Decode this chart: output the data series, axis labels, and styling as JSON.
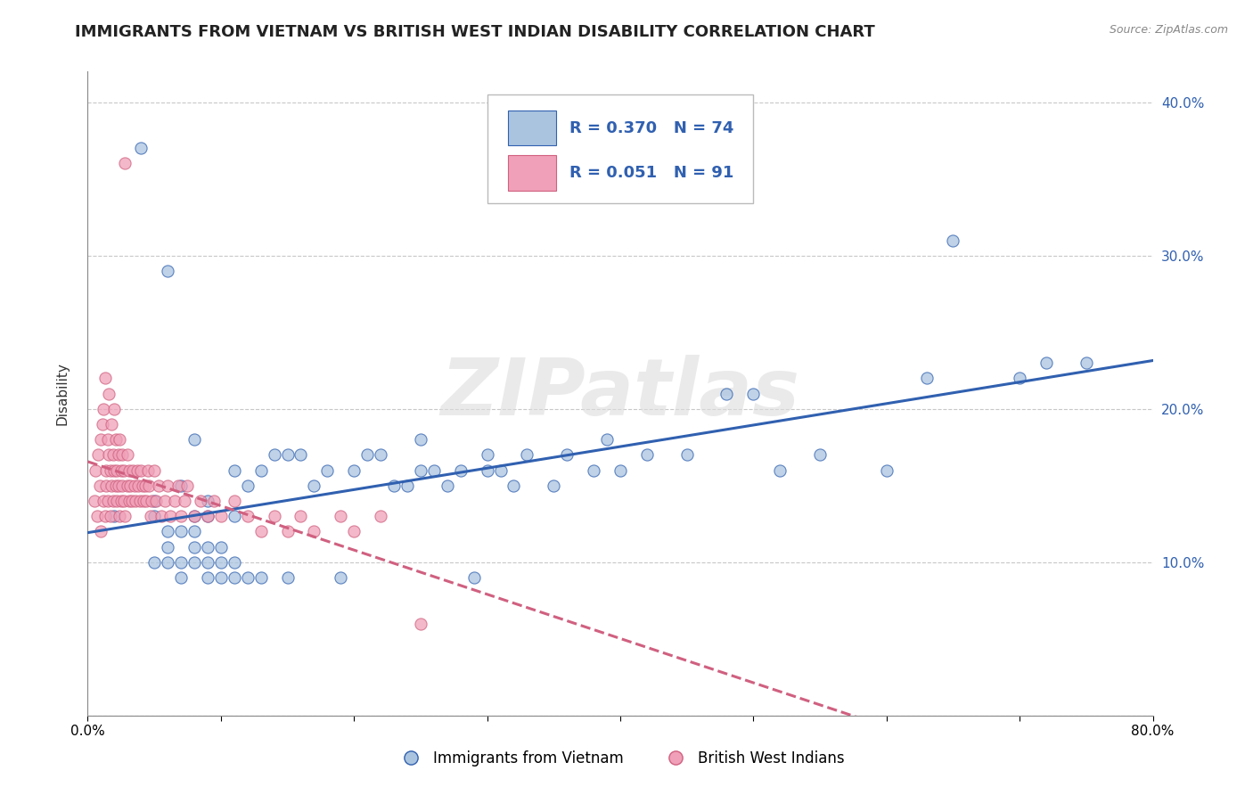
{
  "title": "IMMIGRANTS FROM VIETNAM VS BRITISH WEST INDIAN DISABILITY CORRELATION CHART",
  "source": "Source: ZipAtlas.com",
  "ylabel": "Disability",
  "xlim": [
    0.0,
    0.8
  ],
  "ylim": [
    0.0,
    0.42
  ],
  "xticks": [
    0.0,
    0.1,
    0.2,
    0.3,
    0.4,
    0.5,
    0.6,
    0.7,
    0.8
  ],
  "xticklabels": [
    "0.0%",
    "",
    "",
    "",
    "",
    "",
    "",
    "",
    "80.0%"
  ],
  "yticks": [
    0.0,
    0.1,
    0.2,
    0.3,
    0.4
  ],
  "yticklabels_right": [
    "",
    "10.0%",
    "20.0%",
    "30.0%",
    "40.0%"
  ],
  "blue_R": 0.37,
  "blue_N": 74,
  "pink_R": 0.051,
  "pink_N": 91,
  "blue_color": "#aac4e0",
  "pink_color": "#f0a0b8",
  "blue_line_color": "#3060b0",
  "pink_line_color": "#d06080",
  "legend_label_blue": "Immigrants from Vietnam",
  "legend_label_pink": "British West Indians",
  "blue_scatter_x": [
    0.02,
    0.04,
    0.05,
    0.05,
    0.05,
    0.06,
    0.06,
    0.06,
    0.06,
    0.07,
    0.07,
    0.07,
    0.07,
    0.08,
    0.08,
    0.08,
    0.08,
    0.08,
    0.09,
    0.09,
    0.09,
    0.09,
    0.09,
    0.1,
    0.1,
    0.1,
    0.11,
    0.11,
    0.11,
    0.11,
    0.12,
    0.12,
    0.13,
    0.13,
    0.14,
    0.15,
    0.15,
    0.16,
    0.17,
    0.18,
    0.19,
    0.2,
    0.21,
    0.22,
    0.23,
    0.24,
    0.25,
    0.25,
    0.26,
    0.27,
    0.28,
    0.29,
    0.3,
    0.3,
    0.31,
    0.32,
    0.33,
    0.35,
    0.36,
    0.38,
    0.39,
    0.4,
    0.42,
    0.45,
    0.48,
    0.5,
    0.52,
    0.55,
    0.6,
    0.63,
    0.65,
    0.7,
    0.72,
    0.75
  ],
  "blue_scatter_y": [
    0.13,
    0.37,
    0.1,
    0.13,
    0.14,
    0.1,
    0.11,
    0.12,
    0.29,
    0.09,
    0.1,
    0.12,
    0.15,
    0.1,
    0.11,
    0.12,
    0.13,
    0.18,
    0.09,
    0.1,
    0.11,
    0.13,
    0.14,
    0.09,
    0.1,
    0.11,
    0.09,
    0.1,
    0.13,
    0.16,
    0.09,
    0.15,
    0.09,
    0.16,
    0.17,
    0.09,
    0.17,
    0.17,
    0.15,
    0.16,
    0.09,
    0.16,
    0.17,
    0.17,
    0.15,
    0.15,
    0.16,
    0.18,
    0.16,
    0.15,
    0.16,
    0.09,
    0.16,
    0.17,
    0.16,
    0.15,
    0.17,
    0.15,
    0.17,
    0.16,
    0.18,
    0.16,
    0.17,
    0.17,
    0.21,
    0.21,
    0.16,
    0.17,
    0.16,
    0.22,
    0.31,
    0.22,
    0.23,
    0.23
  ],
  "pink_scatter_x": [
    0.005,
    0.006,
    0.007,
    0.008,
    0.009,
    0.01,
    0.01,
    0.011,
    0.012,
    0.012,
    0.013,
    0.013,
    0.014,
    0.014,
    0.015,
    0.015,
    0.016,
    0.016,
    0.017,
    0.017,
    0.018,
    0.018,
    0.019,
    0.019,
    0.02,
    0.02,
    0.021,
    0.021,
    0.022,
    0.022,
    0.023,
    0.023,
    0.024,
    0.024,
    0.025,
    0.025,
    0.026,
    0.026,
    0.027,
    0.027,
    0.028,
    0.028,
    0.03,
    0.03,
    0.031,
    0.031,
    0.032,
    0.033,
    0.034,
    0.035,
    0.036,
    0.037,
    0.038,
    0.039,
    0.04,
    0.041,
    0.042,
    0.043,
    0.044,
    0.045,
    0.046,
    0.047,
    0.048,
    0.05,
    0.051,
    0.053,
    0.055,
    0.058,
    0.06,
    0.062,
    0.065,
    0.068,
    0.07,
    0.073,
    0.075,
    0.08,
    0.085,
    0.09,
    0.095,
    0.1,
    0.11,
    0.12,
    0.13,
    0.14,
    0.15,
    0.16,
    0.17,
    0.19,
    0.2,
    0.22,
    0.25
  ],
  "pink_scatter_y": [
    0.14,
    0.16,
    0.13,
    0.17,
    0.15,
    0.18,
    0.12,
    0.19,
    0.2,
    0.14,
    0.22,
    0.13,
    0.16,
    0.15,
    0.18,
    0.14,
    0.17,
    0.21,
    0.16,
    0.13,
    0.19,
    0.15,
    0.14,
    0.17,
    0.16,
    0.2,
    0.15,
    0.18,
    0.14,
    0.16,
    0.17,
    0.15,
    0.13,
    0.18,
    0.16,
    0.14,
    0.15,
    0.17,
    0.14,
    0.16,
    0.36,
    0.13,
    0.15,
    0.17,
    0.14,
    0.16,
    0.15,
    0.14,
    0.16,
    0.15,
    0.14,
    0.16,
    0.15,
    0.14,
    0.16,
    0.15,
    0.14,
    0.15,
    0.14,
    0.16,
    0.15,
    0.13,
    0.14,
    0.16,
    0.14,
    0.15,
    0.13,
    0.14,
    0.15,
    0.13,
    0.14,
    0.15,
    0.13,
    0.14,
    0.15,
    0.13,
    0.14,
    0.13,
    0.14,
    0.13,
    0.14,
    0.13,
    0.12,
    0.13,
    0.12,
    0.13,
    0.12,
    0.13,
    0.12,
    0.13,
    0.06
  ],
  "grid_color": "#c8c8c8",
  "background_color": "#ffffff",
  "title_fontsize": 13,
  "tick_fontsize": 11,
  "watermark_text": "ZIPatlas"
}
